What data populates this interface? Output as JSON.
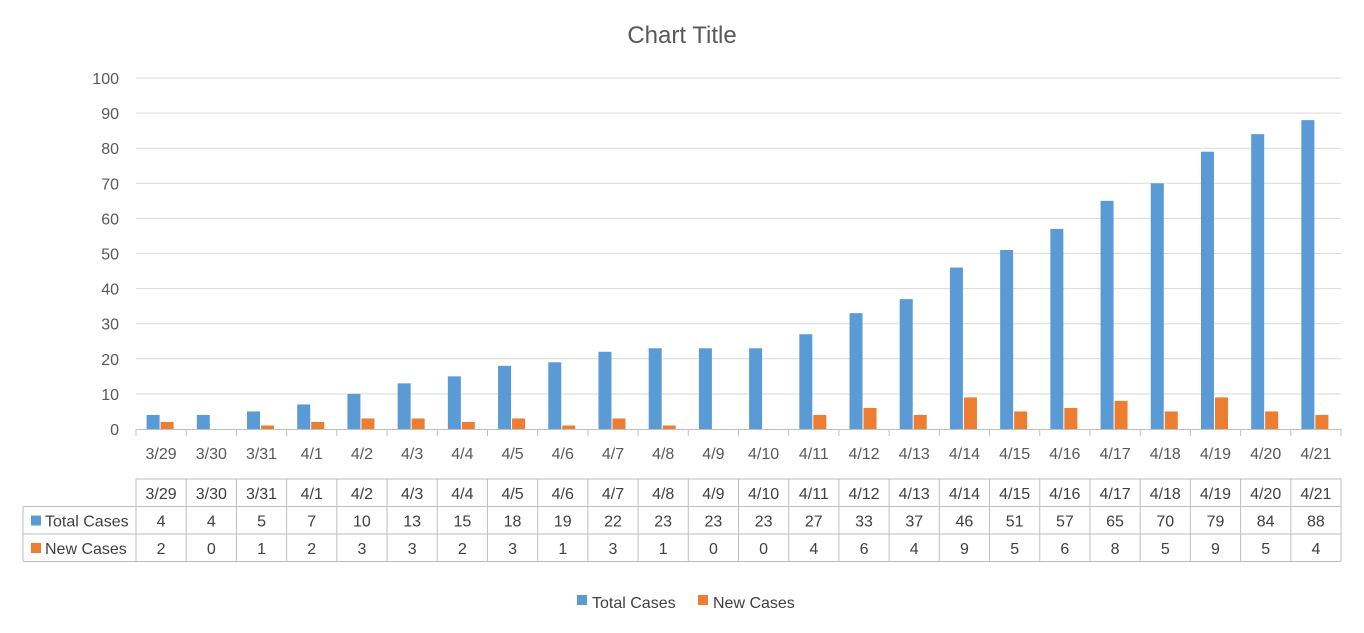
{
  "chart_data": {
    "type": "bar",
    "title": "Chart Title",
    "categories": [
      "3/29",
      "3/30",
      "3/31",
      "4/1",
      "4/2",
      "4/3",
      "4/4",
      "4/5",
      "4/6",
      "4/7",
      "4/8",
      "4/9",
      "4/10",
      "4/11",
      "4/12",
      "4/13",
      "4/14",
      "4/15",
      "4/16",
      "4/17",
      "4/18",
      "4/19",
      "4/20",
      "4/21"
    ],
    "series": [
      {
        "name": "Total Cases",
        "color": "#5B9BD5",
        "values": [
          4,
          4,
          5,
          7,
          10,
          13,
          15,
          18,
          19,
          22,
          23,
          23,
          23,
          27,
          33,
          37,
          46,
          51,
          57,
          65,
          70,
          79,
          84,
          88
        ]
      },
      {
        "name": "New Cases",
        "color": "#ED7D31",
        "values": [
          2,
          0,
          1,
          2,
          3,
          3,
          2,
          3,
          1,
          3,
          1,
          0,
          0,
          4,
          6,
          4,
          9,
          5,
          6,
          8,
          5,
          9,
          5,
          4
        ]
      }
    ],
    "ylim": [
      0,
      100
    ],
    "yticks": [
      0,
      10,
      20,
      30,
      40,
      50,
      60,
      70,
      80,
      90,
      100
    ],
    "grid": true,
    "data_table": true,
    "legend_position": "bottom"
  }
}
